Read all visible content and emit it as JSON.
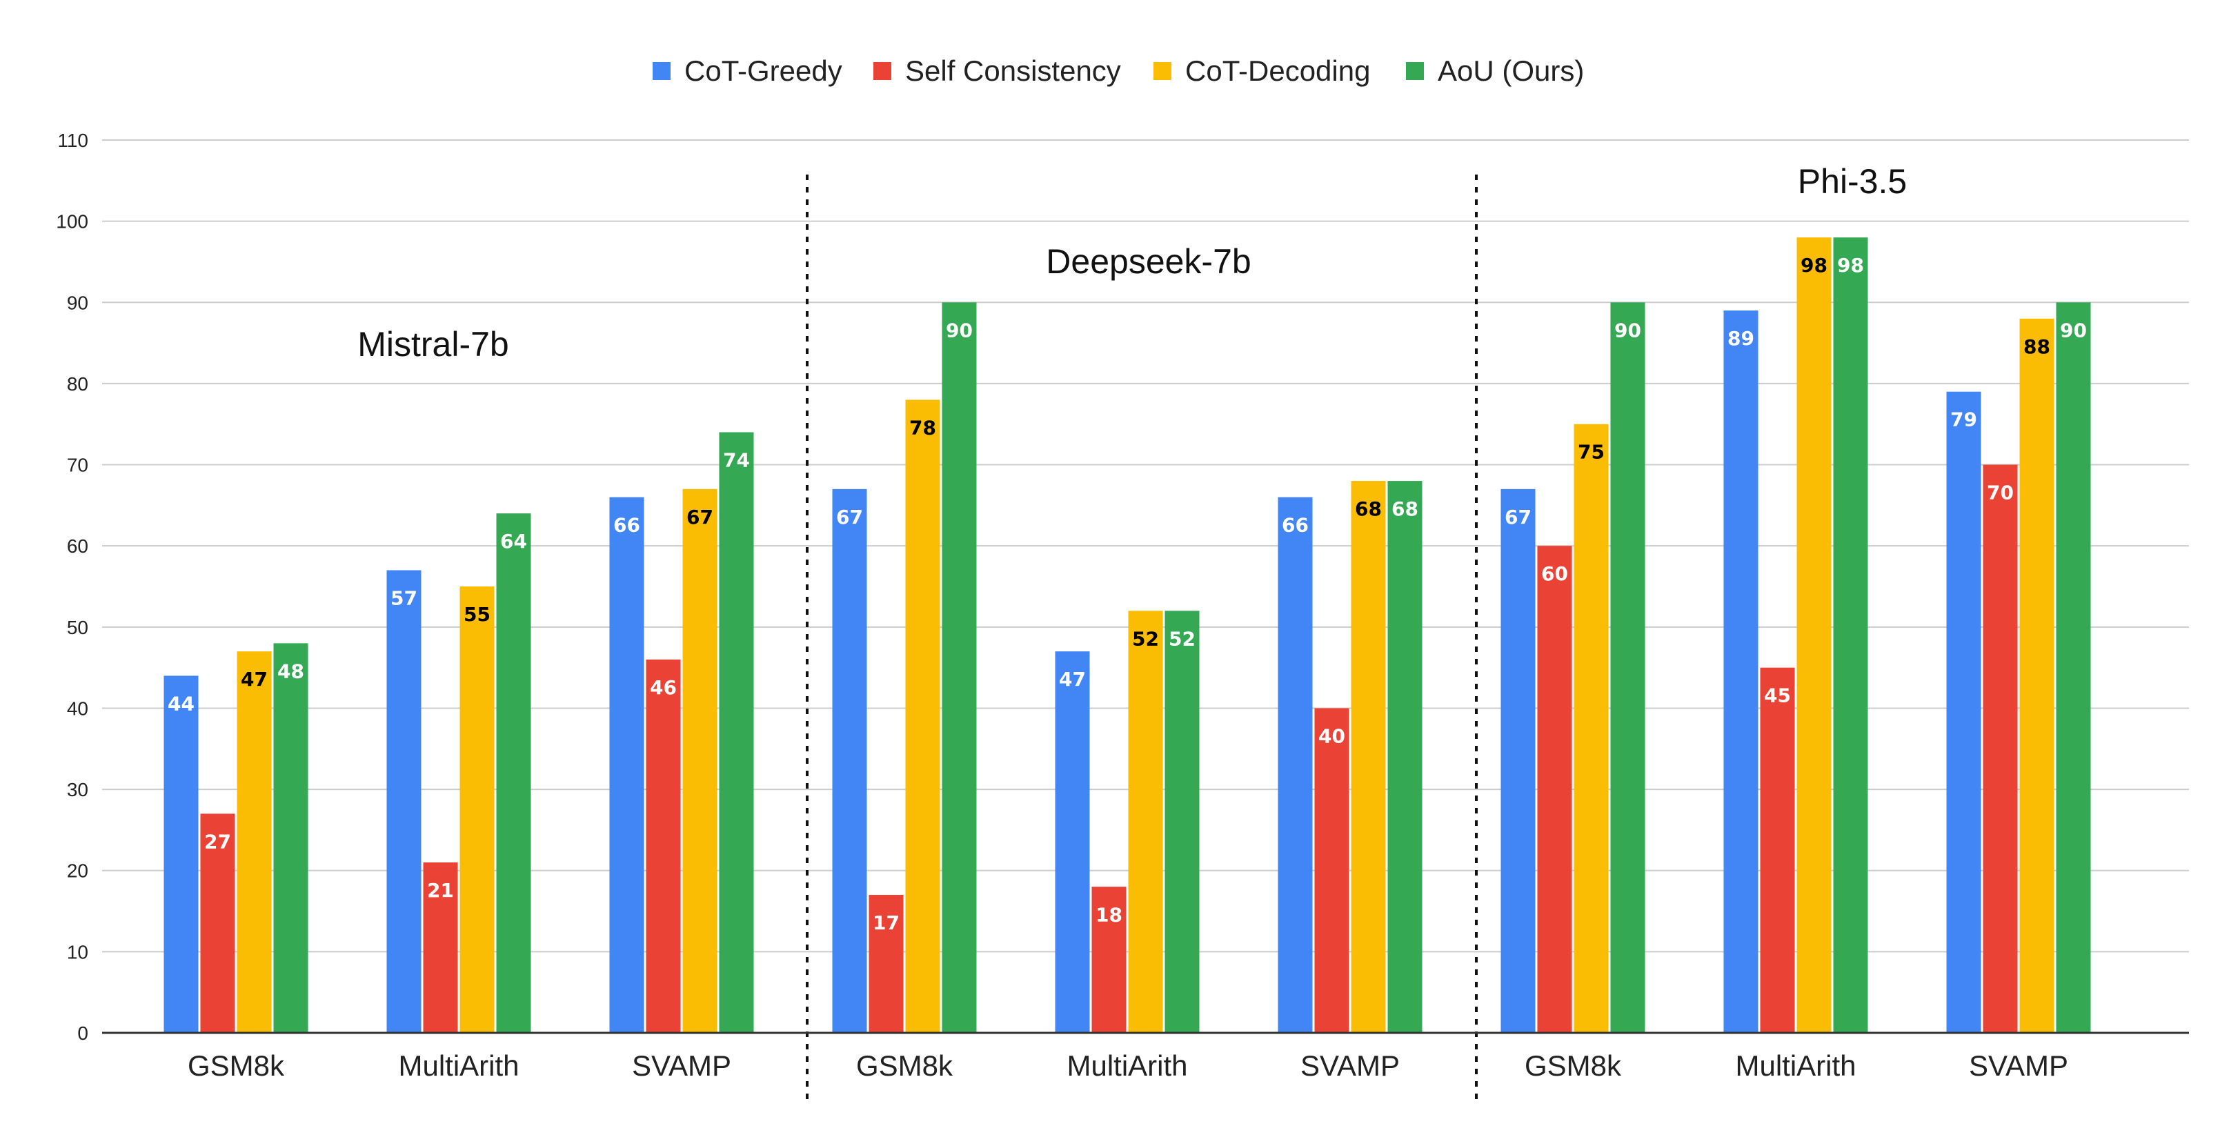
{
  "chart_data": {
    "type": "bar",
    "ylim": [
      0,
      110
    ],
    "yticks": [
      0,
      10,
      20,
      30,
      40,
      50,
      60,
      70,
      80,
      90,
      100,
      110
    ],
    "grid": true,
    "legend_position": "top",
    "series": [
      {
        "name": "CoT-Greedy",
        "color": "#4285F4",
        "label_color": "#ffffff"
      },
      {
        "name": "Self Consistency",
        "color": "#EA4335",
        "label_color": "#ffffff"
      },
      {
        "name": "CoT-Decoding",
        "color": "#FBBC04",
        "label_color": "#000000"
      },
      {
        "name": "AoU (Ours)",
        "color": "#34A853",
        "label_color": "#ffffff"
      }
    ],
    "groups": [
      {
        "name": "Mistral-7b",
        "categories": [
          "GSM8k",
          "MultiArith",
          "SVAMP"
        ],
        "values": [
          [
            44,
            27,
            47,
            48
          ],
          [
            57,
            21,
            55,
            64
          ],
          [
            66,
            46,
            67,
            74
          ]
        ]
      },
      {
        "name": "Deepseek-7b",
        "categories": [
          "GSM8k",
          "MultiArith",
          "SVAMP"
        ],
        "values": [
          [
            67,
            17,
            78,
            90
          ],
          [
            47,
            18,
            52,
            52
          ],
          [
            66,
            40,
            68,
            68
          ]
        ]
      },
      {
        "name": "Phi-3.5",
        "categories": [
          "GSM8k",
          "MultiArith",
          "SVAMP"
        ],
        "values": [
          [
            67,
            60,
            75,
            90
          ],
          [
            89,
            45,
            98,
            98
          ],
          [
            79,
            70,
            88,
            90
          ]
        ]
      }
    ]
  }
}
